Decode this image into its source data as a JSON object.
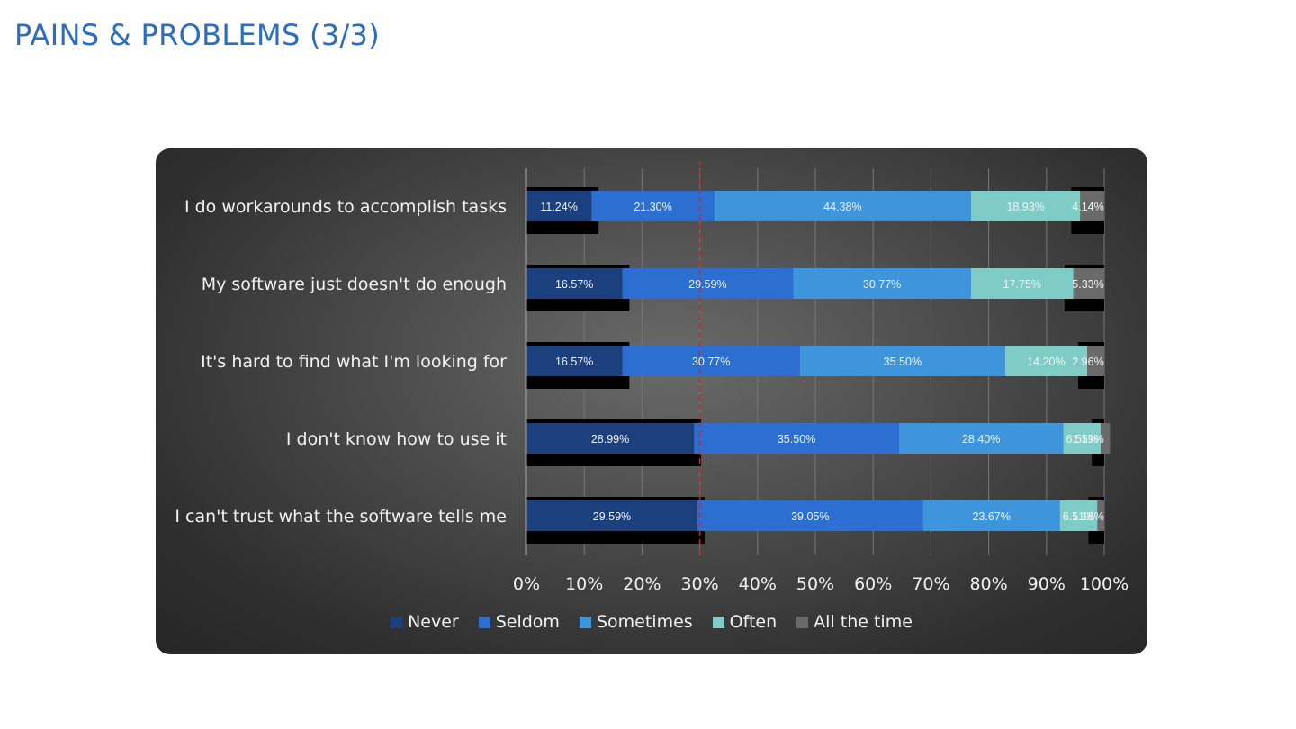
{
  "page": {
    "title": "PAINS & PROBLEMS (3/3)"
  },
  "colors": {
    "title": "#2b6cc4",
    "series": [
      "#1c3f7d",
      "#2c6fd1",
      "#3f95dc",
      "#7fcbc6",
      "#6a6a6a"
    ],
    "reference_line": "#e02020",
    "shadow": "#000000"
  },
  "chart_data": {
    "type": "bar",
    "orientation": "horizontal",
    "stacked": "percent",
    "categories": [
      "I do workarounds to accomplish tasks",
      "My software just doesn't do enough",
      "It's hard to find what I'm looking for",
      "I don't know how to use it",
      "I can't trust what the software tells me"
    ],
    "series": [
      {
        "name": "Never",
        "values": [
          11.24,
          16.57,
          16.57,
          28.99,
          29.59
        ],
        "labels": [
          "11.24%",
          "16.57%",
          "16.57%",
          "28.99%",
          "29.59%"
        ]
      },
      {
        "name": "Seldom",
        "values": [
          21.3,
          29.59,
          30.77,
          35.5,
          39.05
        ],
        "labels": [
          "21.30%",
          "29.59%",
          "30.77%",
          "35.50%",
          "39.05%"
        ]
      },
      {
        "name": "Sometimes",
        "values": [
          44.38,
          30.77,
          35.5,
          28.4,
          23.67
        ],
        "labels": [
          "44.38%",
          "30.77%",
          "35.50%",
          "28.40%",
          "23.67%"
        ]
      },
      {
        "name": "Often",
        "values": [
          18.93,
          17.75,
          14.2,
          6.51,
          6.51
        ],
        "labels": [
          "18.93%",
          "17.75%",
          "14.20%",
          "6.51%",
          "6.51%"
        ]
      },
      {
        "name": "All the time",
        "values": [
          4.14,
          5.33,
          2.96,
          1.59,
          1.18
        ],
        "labels": [
          "4.14%",
          "5.33%",
          "2.96%",
          "1.59%",
          "1.18%"
        ]
      }
    ],
    "x_ticks": [
      "0%",
      "10%",
      "20%",
      "30%",
      "40%",
      "50%",
      "60%",
      "70%",
      "80%",
      "90%",
      "100%"
    ],
    "xlim": [
      0,
      100
    ],
    "reference_line_x": 30,
    "grid": true,
    "legend_position": "bottom"
  }
}
